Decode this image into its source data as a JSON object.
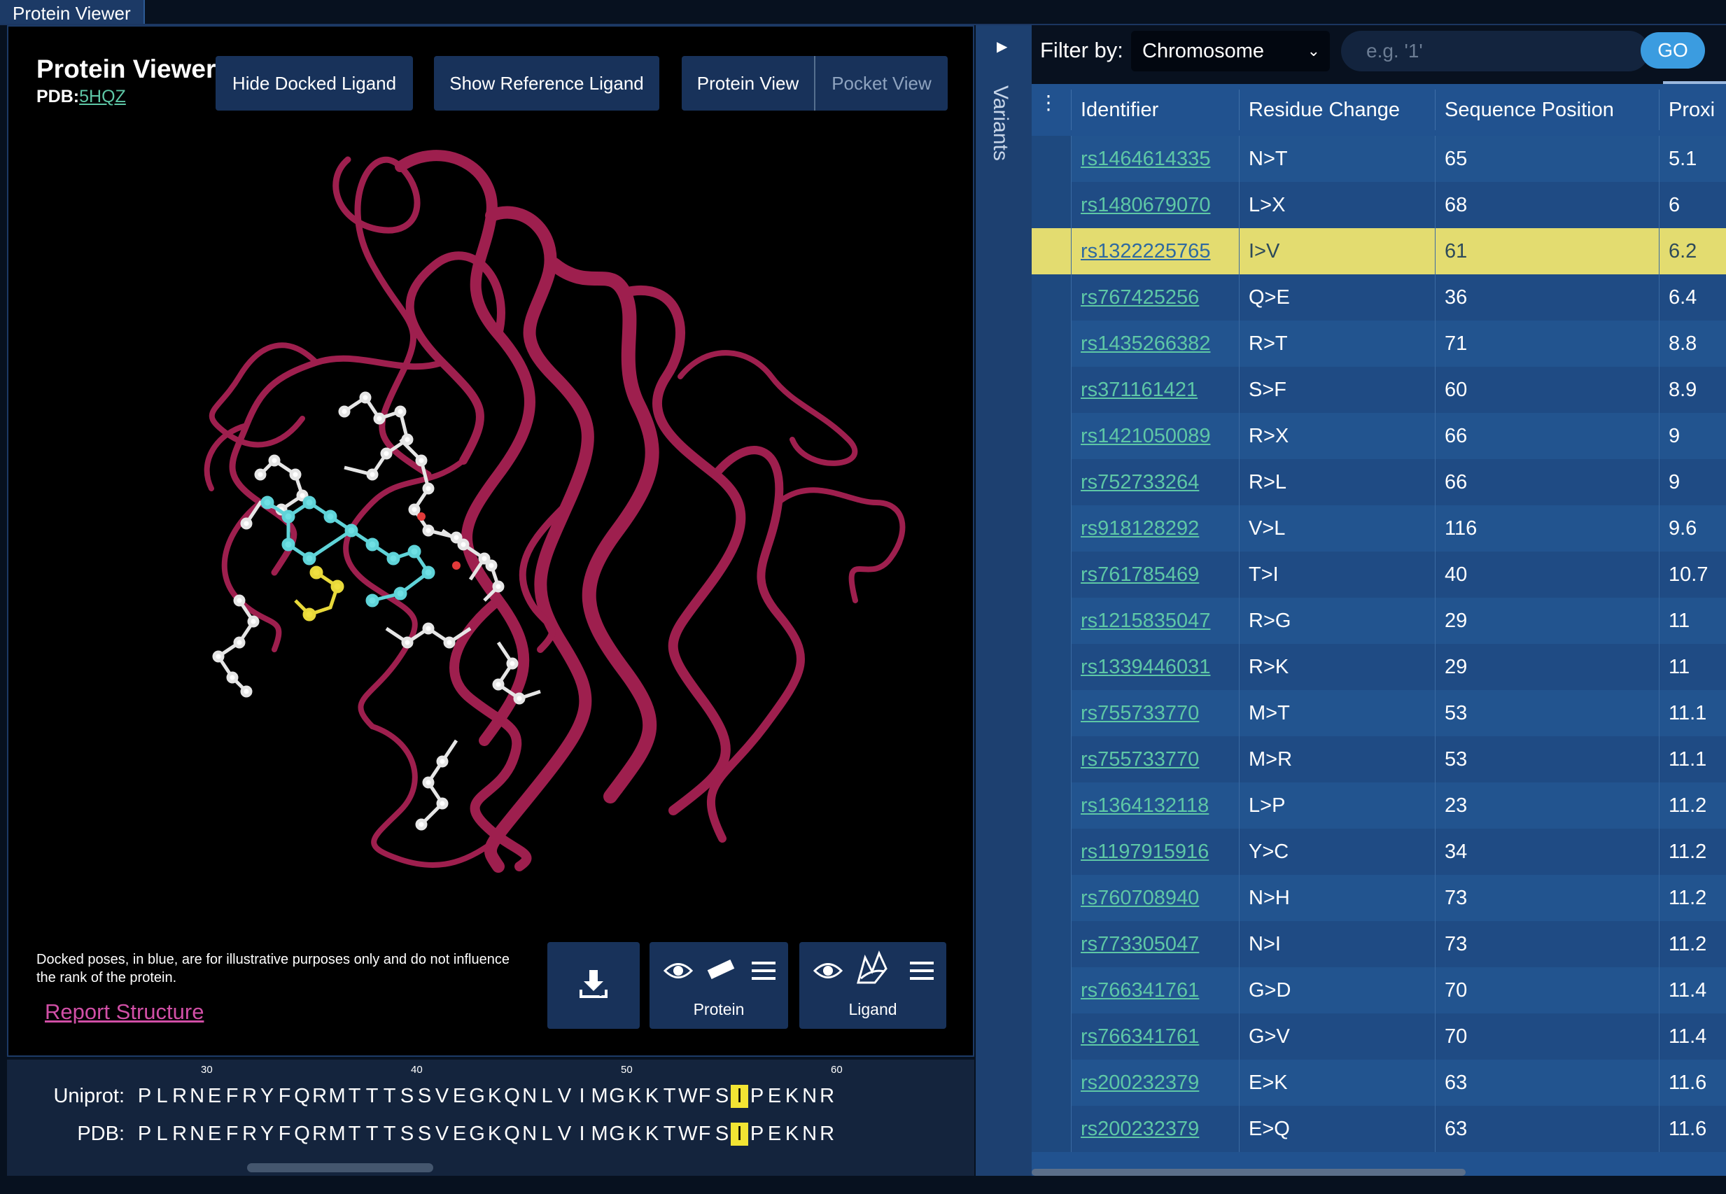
{
  "window": {
    "tab_title": "Protein Viewer"
  },
  "viewer": {
    "title": "Protein Viewer(",
    "pdb_label": "PDB:",
    "pdb_id": "5HQZ",
    "hide_docked_ligand": "Hide Docked Ligand",
    "show_reference_ligand": "Show Reference Ligand",
    "protein_view": "Protein View",
    "pocket_view": "Pocket View",
    "disclaimer": "Docked poses, in blue, are for illustrative purposes only and do not influence the rank of the protein.",
    "report_structure": "Report Structure",
    "protein_label": "Protein",
    "ligand_label": "Ligand",
    "icons": [
      "download-icon",
      "eye-icon",
      "ruler-icon",
      "menu-icon",
      "ligand-icon"
    ]
  },
  "sequence": {
    "ticks": [
      "30",
      "40",
      "50",
      "60"
    ],
    "uniprot_label": "Uniprot:",
    "pdb_label": "PDB:",
    "uniprot": [
      "P",
      "L",
      "R",
      "N",
      "E",
      "F",
      "R",
      "Y",
      "F",
      "Q",
      "R",
      "M",
      "T",
      "T",
      "T",
      "S",
      "S",
      "V",
      "E",
      "G",
      "K",
      "Q",
      "N",
      "L",
      "V",
      "I",
      "M",
      "G",
      "K",
      "K",
      "T",
      "W",
      "F",
      "S",
      "I",
      "P",
      "E",
      "K",
      "N",
      "R"
    ],
    "pdb": [
      "P",
      "L",
      "R",
      "N",
      "E",
      "F",
      "R",
      "Y",
      "F",
      "Q",
      "R",
      "M",
      "T",
      "T",
      "T",
      "S",
      "S",
      "V",
      "E",
      "G",
      "K",
      "Q",
      "N",
      "L",
      "V",
      "I",
      "M",
      "G",
      "K",
      "K",
      "T",
      "W",
      "F",
      "S",
      "I",
      "P",
      "E",
      "K",
      "N",
      "R"
    ],
    "highlight_index": 34,
    "highlight_color": "#f2e433"
  },
  "variants_tab": {
    "label": "Variants"
  },
  "filter": {
    "label": "Filter by:",
    "selected": "Chromosome",
    "placeholder": "e.g. '1'",
    "go": "GO"
  },
  "table": {
    "columns": [
      "Identifier",
      "Residue Change",
      "Sequence Position",
      "Proxi"
    ],
    "highlight_row": 2,
    "highlight_color": "#e3dc70",
    "rows": [
      [
        "rs1464614335",
        "N>T",
        "65",
        "5.1"
      ],
      [
        "rs1480679070",
        "L>X",
        "68",
        "6"
      ],
      [
        "rs1322225765",
        "I>V",
        "61",
        "6.2"
      ],
      [
        "rs767425256",
        "Q>E",
        "36",
        "6.4"
      ],
      [
        "rs1435266382",
        "R>T",
        "71",
        "8.8"
      ],
      [
        "rs371161421",
        "S>F",
        "60",
        "8.9"
      ],
      [
        "rs1421050089",
        "R>X",
        "66",
        "9"
      ],
      [
        "rs752733264",
        "R>L",
        "66",
        "9"
      ],
      [
        "rs918128292",
        "V>L",
        "116",
        "9.6"
      ],
      [
        "rs761785469",
        "T>I",
        "40",
        "10.7"
      ],
      [
        "rs1215835047",
        "R>G",
        "29",
        "11"
      ],
      [
        "rs1339446031",
        "R>K",
        "29",
        "11"
      ],
      [
        "rs755733770",
        "M>T",
        "53",
        "11.1"
      ],
      [
        "rs755733770",
        "M>R",
        "53",
        "11.1"
      ],
      [
        "rs1364132118",
        "L>P",
        "23",
        "11.2"
      ],
      [
        "rs1197915916",
        "Y>C",
        "34",
        "11.2"
      ],
      [
        "rs760708940",
        "N>H",
        "73",
        "11.2"
      ],
      [
        "rs773305047",
        "N>I",
        "73",
        "11.2"
      ],
      [
        "rs766341761",
        "G>D",
        "70",
        "11.4"
      ],
      [
        "rs766341761",
        "G>V",
        "70",
        "11.4"
      ],
      [
        "rs200232379",
        "E>K",
        "63",
        "11.6"
      ],
      [
        "rs200232379",
        "E>Q",
        "63",
        "11.6"
      ]
    ]
  }
}
